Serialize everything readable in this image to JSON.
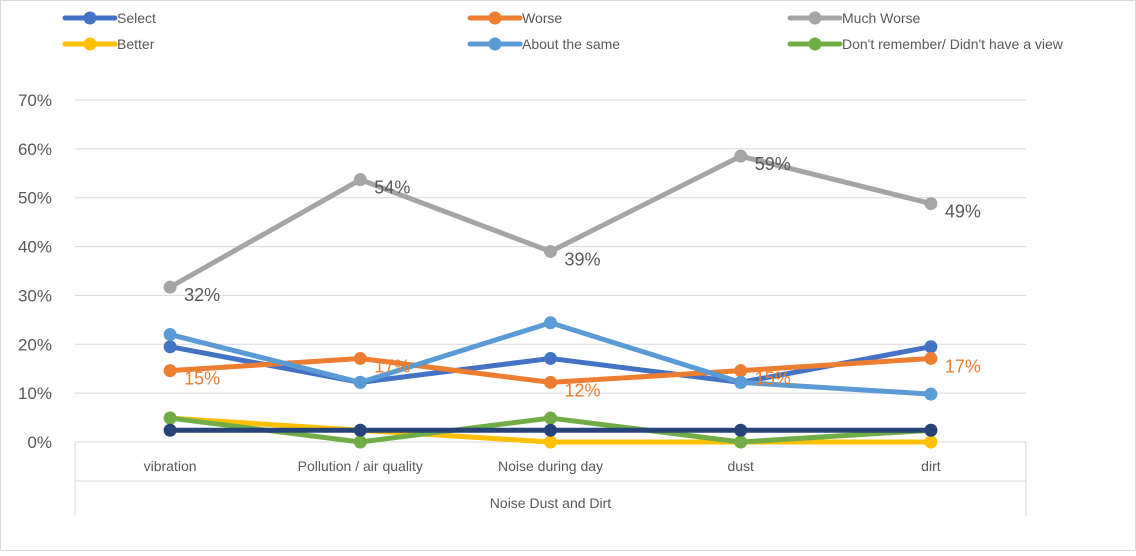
{
  "chart_data": {
    "type": "line",
    "categories": [
      "vibration",
      "Pollution / air quality",
      "Noise during day",
      "dust",
      "dirt"
    ],
    "xlabel": "Noise Dust  and Dirt",
    "ylim": [
      0,
      0.7
    ],
    "yticks": [
      "0%",
      "10%",
      "20%",
      "30%",
      "40%",
      "50%",
      "60%",
      "70%"
    ],
    "grid": true,
    "legend_position": "top",
    "series": [
      {
        "name": "Select",
        "color": "#4472c4",
        "values": [
          0.195,
          0.122,
          0.171,
          0.122,
          0.195
        ],
        "labels": []
      },
      {
        "name": "Worse",
        "color": "#ed7d31",
        "values": [
          0.146,
          0.171,
          0.122,
          0.146,
          0.171
        ],
        "labels": [
          "15%",
          "17%",
          "12%",
          "15%",
          "17%"
        ]
      },
      {
        "name": "Much Worse",
        "color": "#a5a5a5",
        "values": [
          0.317,
          0.537,
          0.39,
          0.585,
          0.488
        ],
        "labels": [
          "32%",
          "54%",
          "39%",
          "59%",
          "49%"
        ]
      },
      {
        "name": "Better",
        "color": "#ffc000",
        "values": [
          0.049,
          0.024,
          0.0,
          0.0,
          0.0
        ],
        "labels": []
      },
      {
        "name": "About the same",
        "color": "#5b9bd5",
        "values": [
          0.22,
          0.122,
          0.244,
          0.122,
          0.098
        ],
        "labels": []
      },
      {
        "name": "Don't remember/ Didn't have a view",
        "color": "#70ad47",
        "values": [
          0.049,
          0.0,
          0.049,
          0.0,
          0.024
        ],
        "labels": []
      },
      {
        "name": "",
        "color": "#264478",
        "values": [
          0.024,
          0.024,
          0.024,
          0.024,
          0.024
        ],
        "labels": []
      }
    ]
  }
}
